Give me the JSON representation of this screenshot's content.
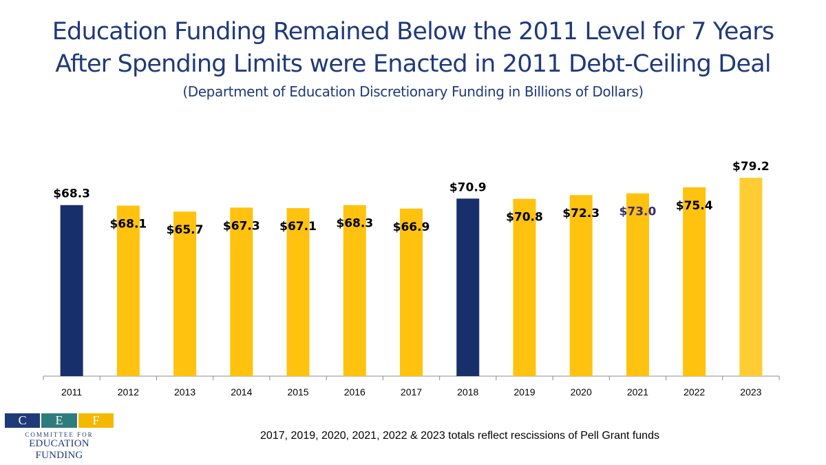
{
  "header": {
    "title_line1": "Education Funding Remained Below the 2011 Level for 7 Years",
    "title_line2": "After Spending Limits were Enacted in 2011 Debt-Ceiling Deal",
    "subtitle": "(Department of Education Discretionary Funding in Billions of Dollars)"
  },
  "chart_data": {
    "type": "bar",
    "categories": [
      "2011",
      "2012",
      "2013",
      "2014",
      "2015",
      "2016",
      "2017",
      "2018",
      "2019",
      "2020",
      "2021",
      "2022",
      "2023"
    ],
    "values": [
      68.3,
      68.1,
      65.7,
      67.3,
      67.1,
      68.3,
      66.9,
      70.9,
      70.8,
      72.3,
      73.0,
      75.4,
      79.2
    ],
    "data_labels": [
      "$68.3",
      "$68.1",
      "$65.7",
      "$67.3",
      "$67.1",
      "$68.3",
      "$66.9",
      "$70.9",
      "$70.8",
      "$72.3",
      "$73.0",
      "$75.4",
      "$79.2"
    ],
    "ylim": [
      0,
      80
    ],
    "grid": false,
    "bar_colors": [
      "#17306b",
      "#ffc20e",
      "#ffc20e",
      "#ffc20e",
      "#ffc20e",
      "#ffc20e",
      "#ffc20e",
      "#17306b",
      "#ffc20e",
      "#ffc20e",
      "#ffc20e",
      "#ffc20e",
      "#ffcc33"
    ],
    "label_colors": [
      "#000000",
      "#000000",
      "#000000",
      "#000000",
      "#000000",
      "#000000",
      "#000000",
      "#000000",
      "#000000",
      "#000000",
      "#3b2d73",
      "#000000",
      "#000000"
    ]
  },
  "footnote": "2017, 2019, 2020, 2021, 2022 & 2023 totals reflect rescissions of Pell Grant funds",
  "logo": {
    "letters": [
      "C",
      "E",
      "F"
    ],
    "letter_colors": [
      "#1f3a78",
      "#2e7d7d",
      "#f5b800"
    ],
    "line1": "COMMITTEE FOR",
    "line2": "EDUCATION FUNDING"
  }
}
